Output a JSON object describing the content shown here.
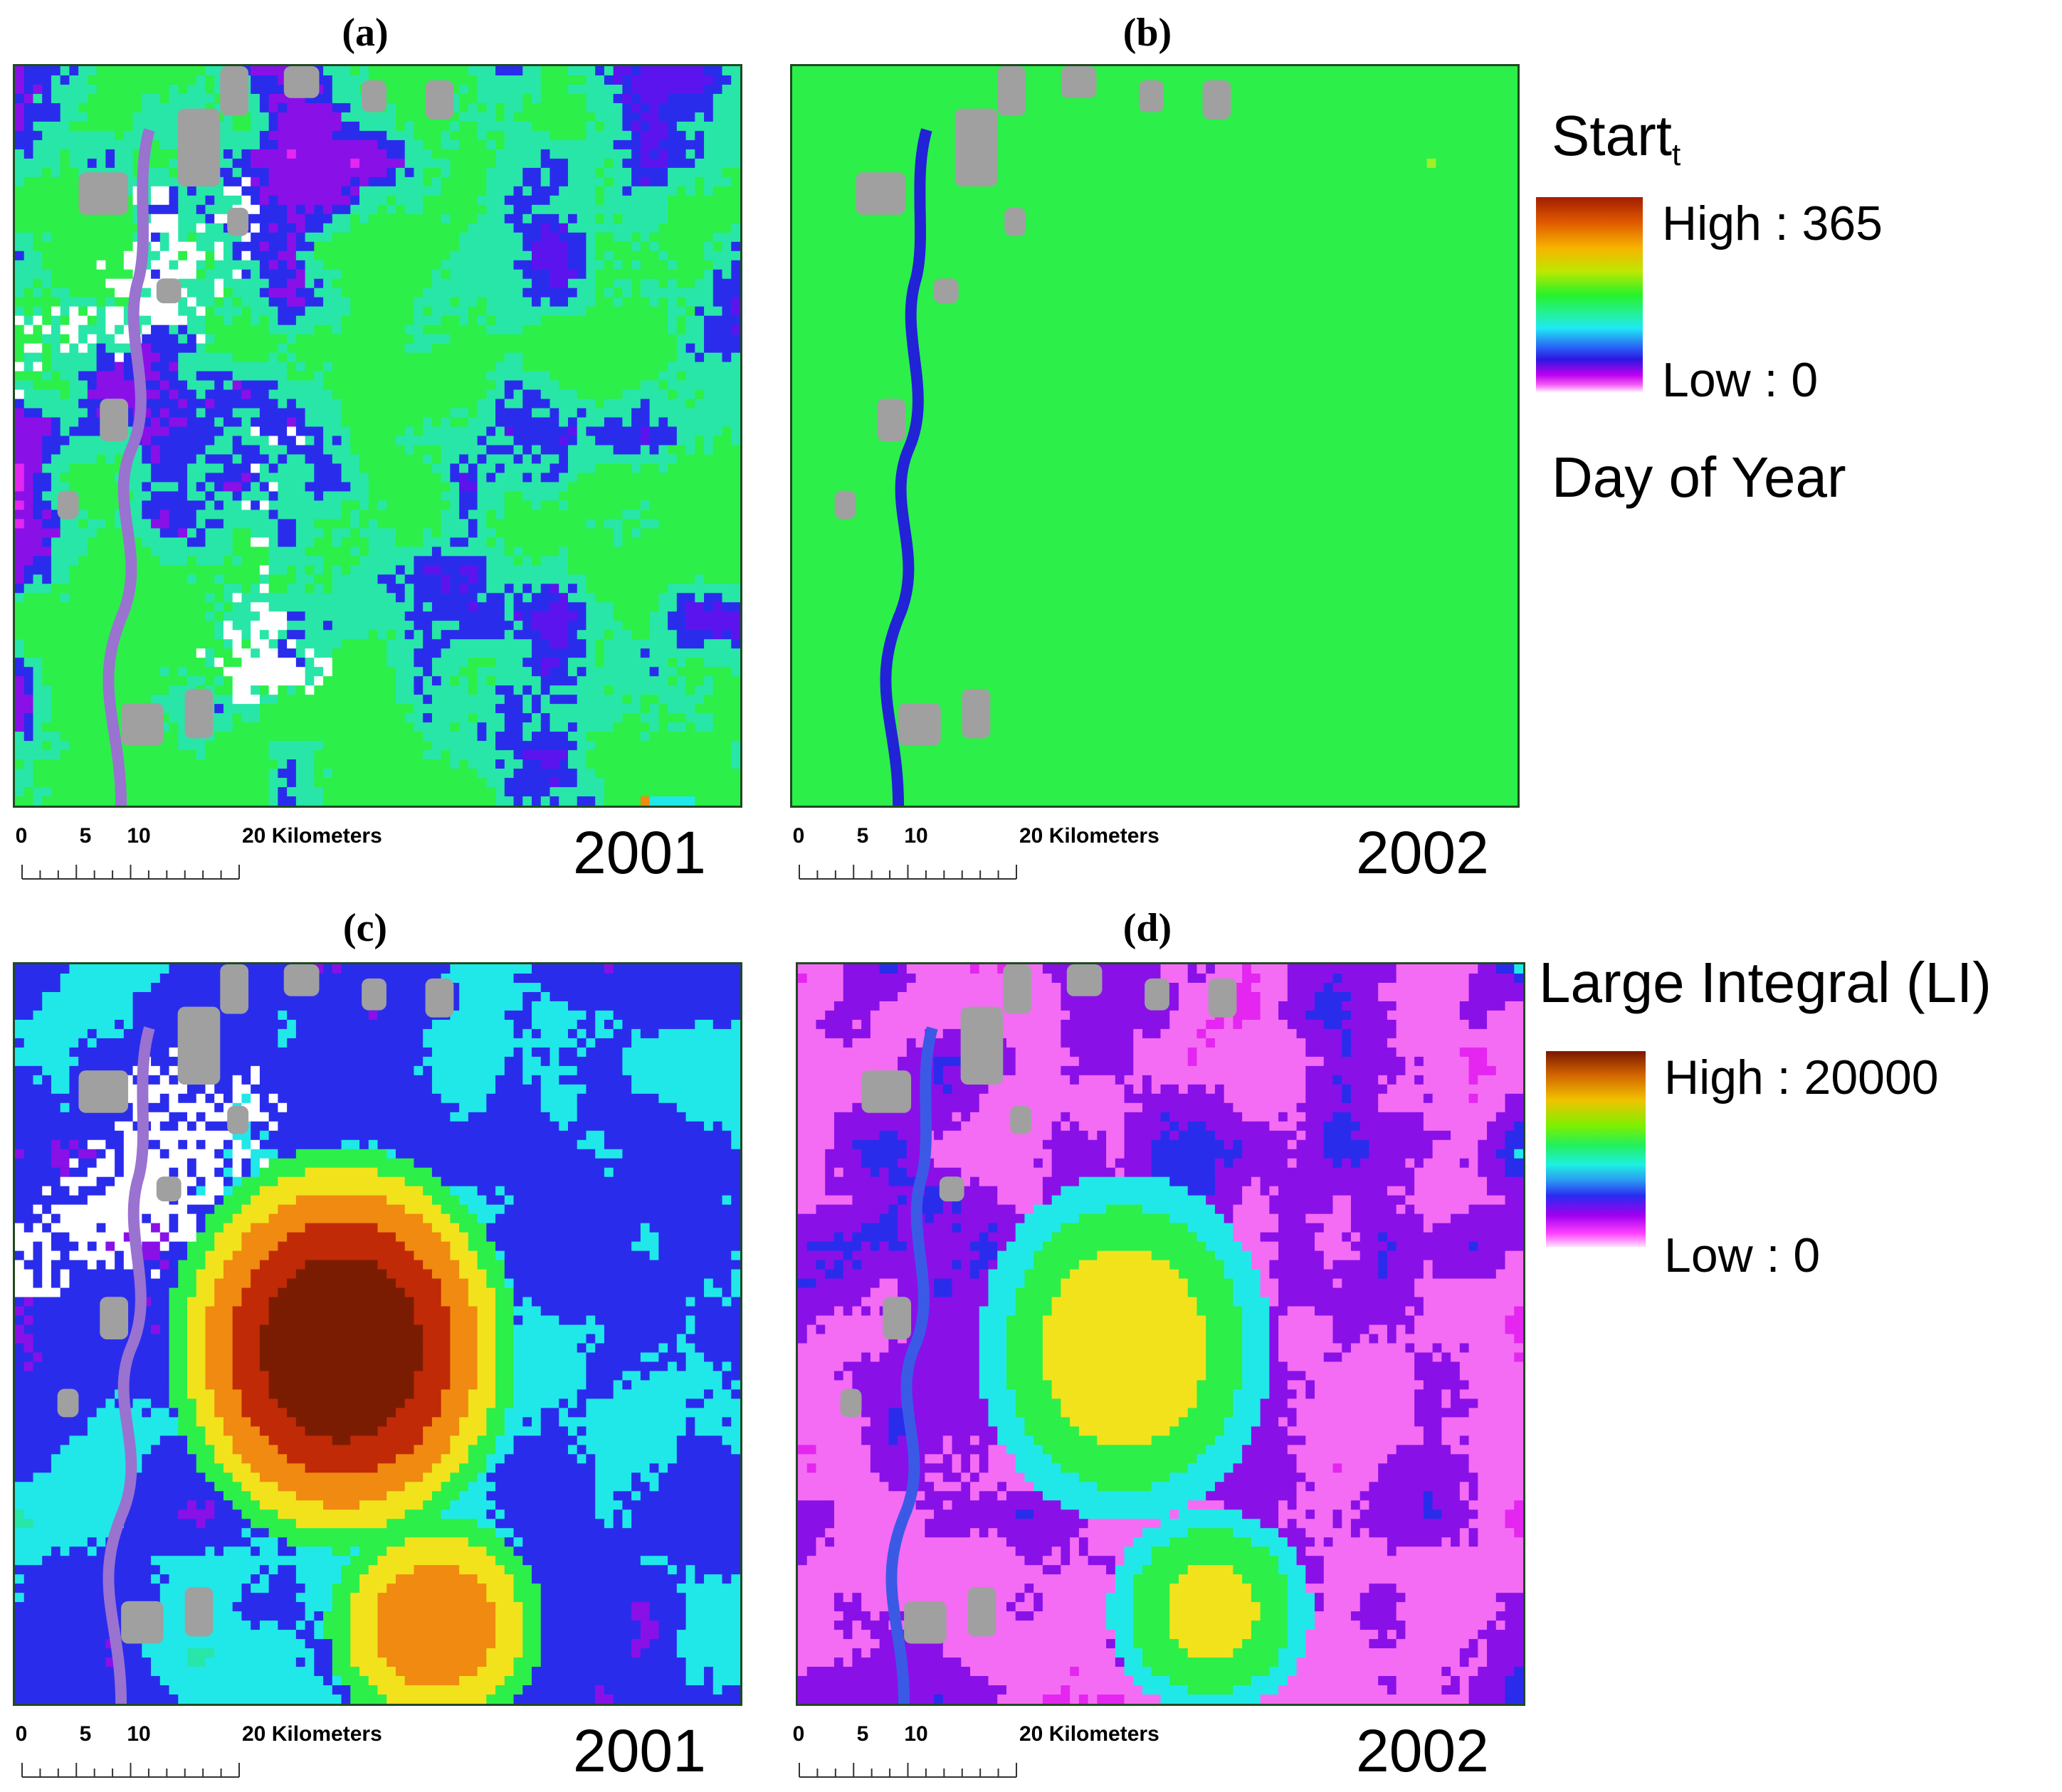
{
  "panels": [
    {
      "label": "(a)",
      "year": "2001",
      "theme": "start2001"
    },
    {
      "label": "(b)",
      "year": "2002",
      "theme": "start2002"
    },
    {
      "label": "(c)",
      "year": "2001",
      "theme": "li2001"
    },
    {
      "label": "(d)",
      "year": "2002",
      "theme": "li2002"
    }
  ],
  "scale_bar": {
    "ticks": [
      "0",
      "5",
      "10",
      "20 Kilometers"
    ],
    "unit": "Kilometers"
  },
  "legend_start": {
    "title": "Start",
    "title_subscript": "t",
    "high": "High : 365",
    "low": "Low : 0",
    "caption": "Day of Year"
  },
  "legend_li": {
    "title": "Large Integral (LI)",
    "high": "High : 20000",
    "low": "Low : 0"
  },
  "colors": {
    "nodata_gray": "#a0a0a0",
    "map_border": "#1f4a22"
  }
}
